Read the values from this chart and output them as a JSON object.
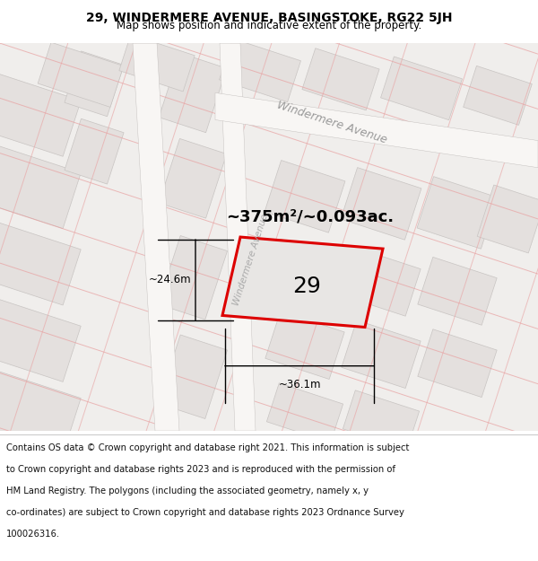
{
  "title_line1": "29, WINDERMERE AVENUE, BASINGSTOKE, RG22 5JH",
  "title_line2": "Map shows position and indicative extent of the property.",
  "area_text": "~375m²/~0.093ac.",
  "property_number": "29",
  "width_label": "~36.1m",
  "height_label": "~24.6m",
  "street_label_upper": "Windermere Avenue",
  "street_label_left": "Windermere Avenue",
  "plot_outline_color": "#dd0000",
  "map_bg": "#f0eeec",
  "block_fill": "#e4e0de",
  "block_edge": "#c8c4c2",
  "road_fill": "#f8f6f4",
  "pink_line": "#e8a0a0",
  "footer_lines": [
    "Contains OS data © Crown copyright and database right 2021. This information is subject",
    "to Crown copyright and database rights 2023 and is reproduced with the permission of",
    "HM Land Registry. The polygons (including the associated geometry, namely x, y",
    "co-ordinates) are subject to Crown copyright and database rights 2023 Ordnance Survey",
    "100026316."
  ],
  "title_fontsize": 10,
  "subtitle_fontsize": 8.5,
  "footer_fontsize": 7.2,
  "area_fontsize": 13,
  "num_fontsize": 18,
  "street_fontsize": 9
}
